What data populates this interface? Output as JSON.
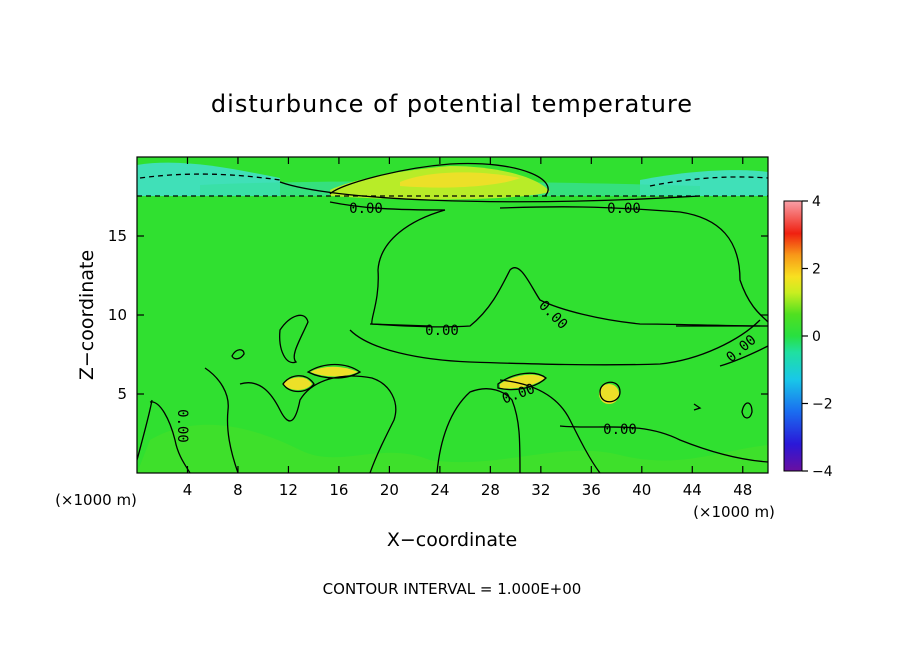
{
  "chart_data": {
    "type": "heatmap",
    "title": "disturbunce of potential temperature",
    "xlabel": "X−coordinate",
    "ylabel": "Z−coordinate",
    "x_unit_left": "(×1000 m)",
    "x_unit_right": "(×1000 m)",
    "xlim": [
      0,
      50
    ],
    "ylim": [
      0,
      20
    ],
    "x_ticks": [
      4,
      8,
      12,
      16,
      20,
      24,
      28,
      32,
      36,
      40,
      44,
      48
    ],
    "y_ticks": [
      5,
      10,
      15
    ],
    "colorbar": {
      "range": [
        -4,
        4
      ],
      "ticks": [
        4,
        2,
        0,
        -2,
        -4
      ],
      "tick_labels": [
        "4",
        "2",
        "0",
        "−2",
        "−4"
      ]
    },
    "contour_labels": [
      "0.00",
      "0.00",
      "0.00",
      "0.00",
      "0.00",
      "0.00",
      "0.00",
      "0.00"
    ],
    "footer": "CONTOUR INTERVAL = 1.000E+00",
    "grid": false
  }
}
